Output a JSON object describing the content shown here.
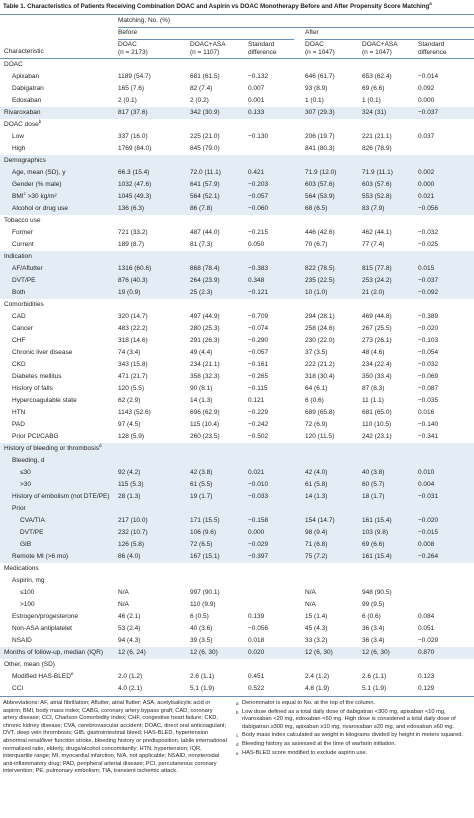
{
  "title": {
    "text": "Table 1. Characteristics of Patients Receiving Combination DOAC and Aspirin vs DOAC Monotherapy Before and After Propensity Score Matching",
    "sup": "a"
  },
  "header": {
    "characteristic": "Characteristic",
    "matching": "Matching, No. (%)",
    "before": "Before",
    "after": "After",
    "columns": [
      [
        "DOAC",
        "(n = 2173)"
      ],
      [
        "DOAC+ASA",
        "(n = 1107)"
      ],
      [
        "Standard",
        "difference"
      ],
      [
        "DOAC",
        "(n = 1047)"
      ],
      [
        "DOAC+ASA",
        "(n = 1047)"
      ],
      [
        "Standard",
        "difference"
      ]
    ]
  },
  "table": {
    "rows": [
      [
        "DOAC"
      ],
      [
        "Apixaban",
        "1189 (54.7)",
        "681 (61.5)",
        "−0.132",
        "646 (61.7)",
        "653 (62.4)",
        "−0.014"
      ],
      [
        "Dabigatran",
        "165 (7.6)",
        "82 (7.4)",
        "0.007",
        "93 (8.9)",
        "69 (6.6)",
        "0.092"
      ],
      [
        "Edoxaban",
        "2 (0.1)",
        "2 (0.2)",
        "0.001",
        "1 (0.1)",
        "1 (0.1)",
        "0.000"
      ],
      [
        "Rivaroxaban",
        "817 (37.6)",
        "342 (30.9)",
        "0.133",
        "307 (29.3)",
        "324 (31)",
        "−0.037"
      ],
      [
        {
          "text": "DOAC dose",
          "sup": "b"
        }
      ],
      [
        "Low",
        "337 (16.0)",
        "225 (21.0)",
        "−0.130",
        "206 (19.7)",
        "221 (21.1)",
        "0.037"
      ],
      [
        "High",
        "1769 (84.0)",
        "845 (79.0)",
        null,
        "841 (80.3)",
        "826 (78.9)"
      ],
      [
        "Demographics"
      ],
      [
        "Age, mean (SD), y",
        "66.3 (15.4)",
        "72.0 (11.1)",
        "0.421",
        "71.9 (12.0)",
        "71.9 (11.1)",
        "0.002"
      ],
      [
        "Gender (% male)",
        "1032 (47.6)",
        "641 (57.9)",
        "−0.203",
        "603 (57.6)",
        "603 (57.6)",
        "0.000"
      ],
      [
        {
          "text": "BMI",
          "sup": "c",
          "rest": " >30 kg/m²"
        },
        "1045 (49.3)",
        "564 (52.1)",
        "−0.057",
        "564 (53.9)",
        "553 (52.8)",
        "0.021"
      ],
      [
        "Alcohol or drug use",
        "136 (6.3)",
        "86 (7.8)",
        "−0.060",
        "68 (6.5)",
        "83 (7.9)",
        "−0.056"
      ],
      [
        "Tobacco use"
      ],
      [
        "Former",
        "721 (33.2)",
        "487 (44.0)",
        "−0.215",
        "446 (42.6)",
        "462 (44.1)",
        "−0.032"
      ],
      [
        "Current",
        "189 (8.7)",
        "81 (7.3)",
        "0.050",
        "70 (6.7)",
        "77 (7.4)",
        "−0.025"
      ],
      [
        "Indication"
      ],
      [
        "AF/Aflutter",
        "1316 (60.6)",
        "868 (78.4)",
        "−0.383",
        "822 (78.5)",
        "815 (77.8)",
        "0.015"
      ],
      [
        "DVT/PE",
        "876 (40.3)",
        "264 (23.9)",
        "0.348",
        "235 (22.5)",
        "253 (24.2)",
        "−0.037"
      ],
      [
        "Both",
        "19 (0.9)",
        "25 (2.3)",
        "−0.121",
        "10 (1.0)",
        "21 (2.0)",
        "−0.092"
      ],
      [
        "Comorbidities"
      ],
      [
        "CAD",
        "320 (14.7)",
        "497 (44.9)",
        "−0.709",
        "294 (28.1)",
        "469 (44.8)",
        "−0.389"
      ],
      [
        "Cancer",
        "483 (22.2)",
        "280 (25.3)",
        "−0.074",
        "258 (24.6)",
        "267 (25.5)",
        "−0.020"
      ],
      [
        "CHF",
        "318 (14.6)",
        "291 (26.3)",
        "−0.290",
        "230 (22.0)",
        "273 (26.1)",
        "−0.103"
      ],
      [
        "Chronic liver disease",
        "74 (3.4)",
        "49 (4.4)",
        "−0.057",
        "37 (3.5)",
        "48 (4.6)",
        "−0.054"
      ],
      [
        "CKD",
        "343 (15.8)",
        "234 (21.1)",
        "−0.161",
        "222 (21.2)",
        "234 (22.4)",
        "−0.032"
      ],
      [
        "Diabetes mellitus",
        "471 (21.7)",
        "358 (32.3)",
        "−0.265",
        "318 (30.4)",
        "350 (33.4)",
        "−0.069"
      ],
      [
        "History of falls",
        "120 (5.5)",
        "90 (8.1)",
        "−0.115",
        "64 (6.1)",
        "87 (8.3)",
        "−0.087"
      ],
      [
        "Hypercoagulable state",
        "62 (2.9)",
        "14 (1.3)",
        "0.121",
        "6 (0.6)",
        "11 (1.1)",
        "−0.035"
      ],
      [
        "HTN",
        "1143 (52.6)",
        "696 (62.9)",
        "−0.229",
        "689 (65.8)",
        "681 (65.0)",
        "0.016"
      ],
      [
        "PAD",
        "97 (4.5)",
        "115 (10.4)",
        "−0.242",
        "72 (6.9)",
        "110 (10.5)",
        "−0.140"
      ],
      [
        "Prior PCI/CABG",
        "128 (5.9)",
        "260 (23.5)",
        "−0.502",
        "120 (11.5)",
        "242 (23.1)",
        "−0.341"
      ],
      [
        {
          "text": "History of bleeding or thrombosis",
          "sup": "d"
        }
      ],
      [
        "Bleeding, d"
      ],
      [
        "≤30",
        "92 (4.2)",
        "42 (3.8)",
        "0.021",
        "42 (4.0)",
        "40 (3.8)",
        "0.010"
      ],
      [
        ">30",
        "115 (5.3)",
        "61 (5.5)",
        "−0.010",
        "61 (5.8)",
        "60 (5.7)",
        "0.004"
      ],
      [
        "History of embolism (not DTE/PE)",
        "28 (1.3)",
        "19 (1.7)",
        "−0.033",
        "14 (1.3)",
        "18 (1.7)",
        "−0.031"
      ],
      [
        "Prior"
      ],
      [
        "CVA/TIA",
        "217 (10.0)",
        "171 (15.5)",
        "−0.158",
        "154 (14.7)",
        "161 (15.4)",
        "−0.020"
      ],
      [
        "DVT/PE",
        "232 (10.7)",
        "106 (9.6)",
        "0.000",
        "98 (9.4)",
        "103 (9.8)",
        "−0.015"
      ],
      [
        "GIB",
        "126 (5.8)",
        "72 (6.5)",
        "−0.029",
        "71 (6.8)",
        "69 (6.6)",
        "0.008"
      ],
      [
        "Remote MI (>6 mo)",
        "86 (4.0)",
        "167 (15.1)",
        "−0.397",
        "75 (7.2)",
        "161 (15.4)",
        "−0.264"
      ],
      [
        "Medications"
      ],
      [
        "Aspirin, mg"
      ],
      [
        "≤100",
        "N/A",
        "997 (90.1)",
        null,
        "N/A",
        "948 (90.5)"
      ],
      [
        ">100",
        "N/A",
        "110 (9.9)",
        null,
        "N/A",
        "99 (9.5)"
      ],
      [
        "Estrogen/progesterone",
        "46 (2.1)",
        "6 (0.5)",
        "0.139",
        "15 (1.4)",
        "6 (0.6)",
        "0.084"
      ],
      [
        "Non-ASA antiplatelet",
        "53 (2.4)",
        "40 (3.6)",
        "−0.056",
        "45 (4.3)",
        "36 (3.4)",
        "0.051"
      ],
      [
        "NSAID",
        "94 (4.3)",
        "39 (3.5)",
        "0.018",
        "33 (3.2)",
        "36 (3.4)",
        "−0.029"
      ],
      [
        "Months of follow-up, median (IQR)",
        "12 (6, 24)",
        "12 (6, 30)",
        "0.020",
        "12 (6, 30)",
        "12 (6, 30)",
        "0.870"
      ],
      [
        "Other, mean (SD)"
      ],
      [
        {
          "text": "Modified HAS-BLED",
          "sup": "e"
        },
        "2.0 (1.2)",
        "2.6 (1.1)",
        "0.451",
        "2.4 (1.2)",
        "2.6 (1.1)",
        "0.123"
      ],
      [
        "CCI",
        "4.0 (2.1)",
        "5.1 (1.9)",
        "0.522",
        "4.8 (1.9)",
        "5.1 (1.9)",
        "0.129"
      ]
    ]
  },
  "abbreviations": "Abbreviations: AF, atrial fibrillation; Aflutter, atrial flutter; ASA, acetylsalicylic acid or aspirin; BMI, body mass index; CABG, coronary artery bypass graft; CAD, coronary artery disease; CCI, Charlson Comorbidity Index; CHF, congestive heart failure; CKD, chronic kidney disease; CVA, cerebrovascular accident; DOAC, direct oral anticoagulant; DVT, deep vein thrombosis; GIB, gastrointestinal bleed; HAS-BLED, hypertension abnormal renal/liver function stroke, bleeding history or predisposition, labile international normalized ratio, elderly, drugs/alcohol concomitantly; HTN, hypertension; IQR, interquartile range; MI, myocardial infarction; N/A, not applicable; NSAID, nonsteroidal anti-inflammatory drug; PAD, peripheral arterial disease; PCI, percutaneous coronary intervention; PE, pulmonary embolism; TIA, transient ischemic attack.",
  "notes": [
    {
      "mark": "a",
      "text": "Denominator is equal to No. at the top of the column."
    },
    {
      "mark": "b",
      "text": "Low dose defined as a total daily dose of dabigatran <300 mg, apixaban <10 mg, rivaroxaban <20 mg, edoxaban <60 mg. High dose is considered a total daily dose of dabigatran ≥300 mg, apixaban ≥10 mg, rivaroxaban ≥20 mg, and edoxaban ≥60 mg."
    },
    {
      "mark": "c",
      "text": "Body mass index calculated as weight in kilograms divided by height in meters squared."
    },
    {
      "mark": "d",
      "text": "Bleeding history as assessed at the time of warfarin initiation."
    },
    {
      "mark": "e",
      "text": "HAS-BLED score modified to exclude aspirin use."
    }
  ]
}
